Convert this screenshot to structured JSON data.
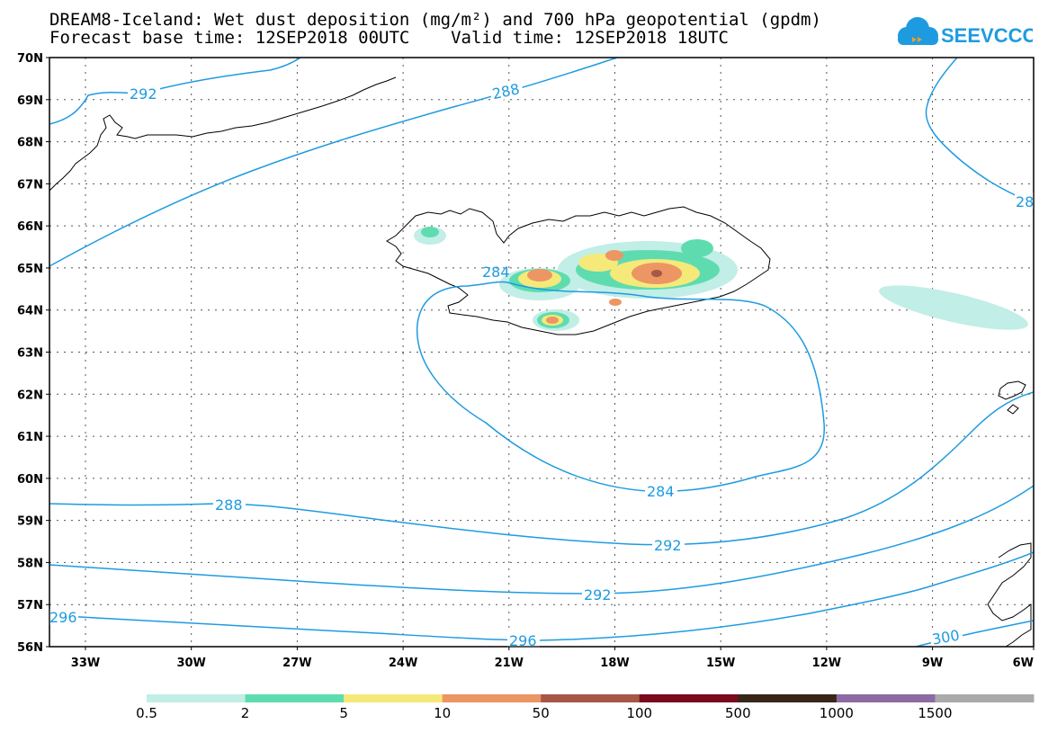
{
  "header": {
    "title_line1": "DREAM8-Iceland: Wet dust deposition (mg/m²) and 700 hPa geopotential (gpdm)",
    "title_line2": "Forecast base time: 12SEP2018 00UTC    Valid time: 12SEP2018 18UTC",
    "logo_text": "SEEVCCC"
  },
  "map": {
    "lat_labels": [
      "70N",
      "69N",
      "68N",
      "67N",
      "66N",
      "65N",
      "64N",
      "63N",
      "62N",
      "61N",
      "60N",
      "59N",
      "58N",
      "57N",
      "56N"
    ],
    "lon_labels": [
      "33W",
      "30W",
      "27W",
      "24W",
      "21W",
      "18W",
      "15W",
      "12W",
      "9W",
      "6W"
    ],
    "contour_color": "#1e9be0",
    "contours": [
      {
        "value": "292",
        "where": "northwest"
      },
      {
        "value": "288",
        "where": "north"
      },
      {
        "value": "284",
        "where": "iceland-west"
      },
      {
        "value": "284",
        "where": "south-low"
      },
      {
        "value": "288",
        "where": "south"
      },
      {
        "value": "292",
        "where": "south"
      },
      {
        "value": "296",
        "where": "southwest"
      },
      {
        "value": "296",
        "where": "south"
      },
      {
        "value": "300",
        "where": "southeast"
      },
      {
        "value": "28",
        "where": "east-edge"
      }
    ]
  },
  "colorbar": {
    "labels": [
      "0.5",
      "2",
      "5",
      "10",
      "50",
      "100",
      "500",
      "1000",
      "1500"
    ],
    "colors": [
      "#c1eee6",
      "#5edcb0",
      "#f5e97a",
      "#eb9663",
      "#a65746",
      "#7a0a1e",
      "#38261a",
      "#8d6aa2",
      "#aaaaaa"
    ]
  }
}
